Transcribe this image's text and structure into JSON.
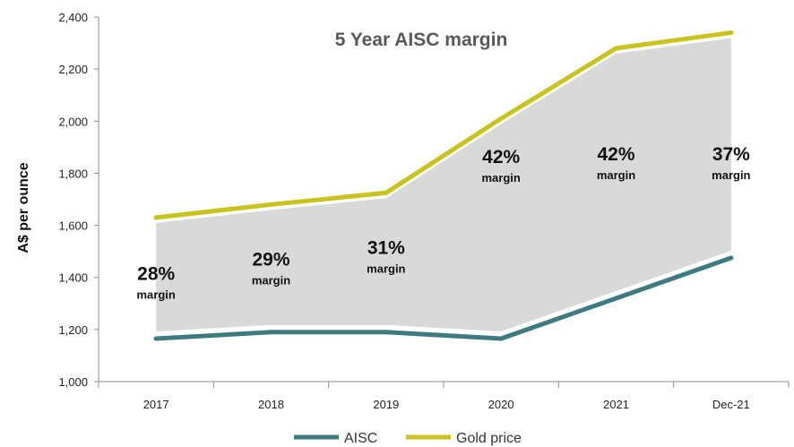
{
  "chart_data": {
    "type": "area",
    "title": "5 Year AISC margin",
    "ylabel": "A$ per ounce",
    "xlabel": "",
    "categories": [
      "2017",
      "2018",
      "2019",
      "2020",
      "2021",
      "Dec-21"
    ],
    "ylim": [
      1000,
      2400
    ],
    "yticks": [
      1000,
      1200,
      1400,
      1600,
      1800,
      2000,
      2200,
      2400
    ],
    "ytick_labels": [
      "1,000",
      "1,200",
      "1,400",
      "1,600",
      "1,800",
      "2,000",
      "2,200",
      "2,400"
    ],
    "series": [
      {
        "name": "AISC",
        "values": [
          1165,
          1190,
          1190,
          1165,
          1320,
          1475
        ],
        "color": "#3d7b80"
      },
      {
        "name": "Gold price",
        "values": [
          1630,
          1680,
          1725,
          2010,
          2280,
          2340
        ],
        "color": "#c9c31e"
      }
    ],
    "fill_color": "#d9d9d9",
    "grid": false,
    "legend_position": "bottom-center",
    "annotations": [
      {
        "category": "2017",
        "percent": "28%",
        "label": "margin",
        "y": 1390
      },
      {
        "category": "2018",
        "percent": "29%",
        "label": "margin",
        "y": 1445
      },
      {
        "category": "2019",
        "percent": "31%",
        "label": "margin",
        "y": 1490
      },
      {
        "category": "2020",
        "percent": "42%",
        "label": "margin",
        "y": 1840
      },
      {
        "category": "2021",
        "percent": "42%",
        "label": "margin",
        "y": 1850
      },
      {
        "category": "Dec-21",
        "percent": "37%",
        "label": "margin",
        "y": 1850
      }
    ]
  }
}
